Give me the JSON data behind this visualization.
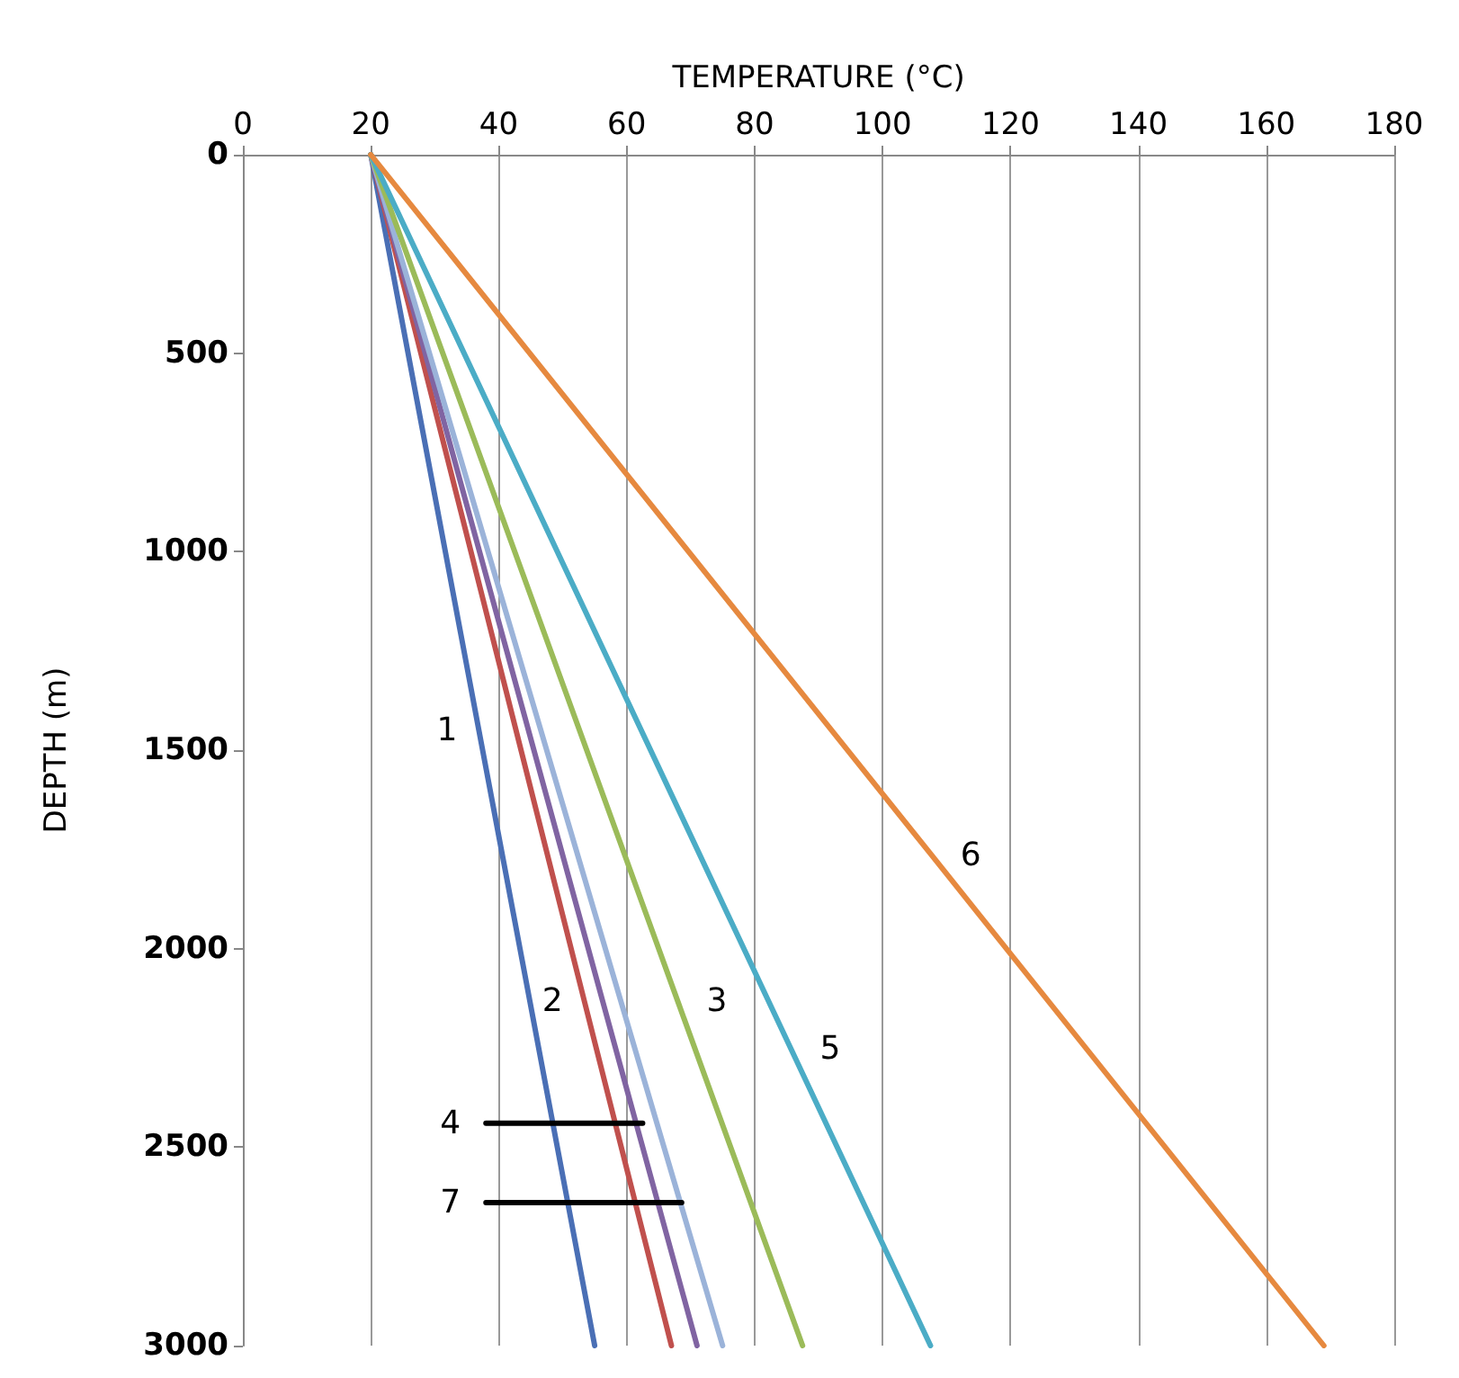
{
  "chart_data": {
    "type": "line",
    "xlabel": "TEMPERATURE (°C)",
    "ylabel": "DEPTH (m)",
    "xlim": [
      0,
      180
    ],
    "xticks": [
      0,
      20,
      40,
      60,
      80,
      100,
      120,
      140,
      160,
      180
    ],
    "ylim": [
      3000,
      0
    ],
    "yticks": [
      0,
      500,
      1000,
      1500,
      2000,
      2500,
      3000
    ],
    "grid": "x",
    "marker": "none",
    "line_style": "solid",
    "series": [
      {
        "name": "1",
        "color": "#4a6fb5",
        "x": [
          20,
          36.9,
          55
        ],
        "values": [
          0,
          1450,
          3000
        ]
      },
      {
        "name": "2",
        "color": "#c0504d",
        "x": [
          20,
          53.4,
          67
        ],
        "values": [
          0,
          2133,
          3000
        ]
      },
      {
        "color": "#8064a2",
        "x": [
          20,
          71
        ],
        "values": [
          0,
          3000
        ]
      },
      {
        "color": "#9bb3d9",
        "x": [
          20,
          75
        ],
        "values": [
          0,
          3000
        ]
      },
      {
        "name": "3",
        "color": "#9bbb59",
        "x": [
          20,
          68,
          87.5
        ],
        "values": [
          0,
          2133,
          3000
        ]
      },
      {
        "name": "5",
        "color": "#4bacc6",
        "x": [
          20,
          85.7,
          107.5
        ],
        "values": [
          0,
          2253,
          3000
        ]
      },
      {
        "name": "6",
        "color": "#e6893f",
        "x": [
          20,
          107.7,
          169
        ],
        "values": [
          0,
          1765,
          3000
        ]
      },
      {
        "name": "4",
        "color": "#000000",
        "x": [
          38,
          62.5
        ],
        "values": [
          2440,
          2440
        ]
      },
      {
        "name": "7",
        "color": "#000000",
        "x": [
          38,
          68.6
        ],
        "values": [
          2640,
          2640
        ]
      }
    ]
  }
}
